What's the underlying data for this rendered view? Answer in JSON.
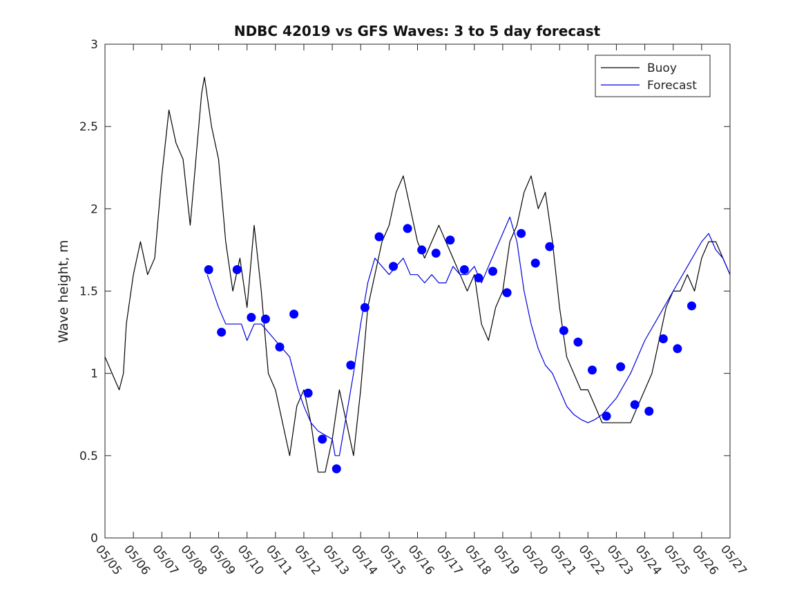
{
  "chart_data": {
    "type": "line",
    "title": "NDBC 42019 vs GFS Waves: 3 to 5 day forecast",
    "xlabel": "",
    "ylabel": "Wave height, m",
    "ylim": [
      0,
      3
    ],
    "xlim": [
      0,
      22
    ],
    "yticks": [
      0,
      0.5,
      1,
      1.5,
      2,
      2.5,
      3
    ],
    "ytick_labels": [
      "0",
      "0.5",
      "1",
      "1.5",
      "2",
      "2.5",
      "3"
    ],
    "xtick_labels": [
      "05/05",
      "05/06",
      "05/07",
      "05/08",
      "05/09",
      "05/10",
      "05/11",
      "05/12",
      "05/13",
      "05/14",
      "05/15",
      "05/16",
      "05/17",
      "05/18",
      "05/19",
      "05/20",
      "05/21",
      "05/22",
      "05/23",
      "05/24",
      "05/25",
      "05/26",
      "05/27"
    ],
    "grid": false,
    "legend_position": "top-right",
    "legend": [
      {
        "label": "Buoy",
        "color": "#000000"
      },
      {
        "label": "Forecast",
        "color": "#0000dd"
      }
    ],
    "colors": {
      "buoy": "#000000",
      "forecast": "#0000dd",
      "marker": "#0000ff"
    },
    "series": [
      {
        "name": "Buoy",
        "x": [
          0,
          0.25,
          0.5,
          0.65,
          0.75,
          1.0,
          1.25,
          1.5,
          1.75,
          2.0,
          2.25,
          2.5,
          2.75,
          3.0,
          3.25,
          3.4,
          3.5,
          3.75,
          4.0,
          4.25,
          4.5,
          4.75,
          5.0,
          5.25,
          5.5,
          5.75,
          6.0,
          6.25,
          6.5,
          6.75,
          7.0,
          7.25,
          7.5,
          7.75,
          8.0,
          8.25,
          8.5,
          8.75,
          9.0,
          9.25,
          9.5,
          9.75,
          10.0,
          10.25,
          10.5,
          10.75,
          11.0,
          11.25,
          11.5,
          11.75,
          12.0,
          12.25,
          12.5,
          12.75,
          13.0,
          13.25,
          13.5,
          13.75,
          14.0,
          14.25,
          14.5,
          14.75,
          15.0,
          15.25,
          15.5,
          15.75,
          16.0,
          16.25,
          16.5,
          16.75,
          17.0,
          17.25,
          17.5,
          17.75,
          18.0,
          18.25,
          18.5,
          18.75,
          19.0,
          19.25,
          19.5,
          19.75,
          20.0,
          20.25,
          20.5,
          20.75,
          21.0,
          21.25,
          21.5,
          21.75,
          22.0
        ],
        "values": [
          1.1,
          1.0,
          0.9,
          1.0,
          1.3,
          1.6,
          1.8,
          1.6,
          1.7,
          2.2,
          2.6,
          2.4,
          2.3,
          1.9,
          2.4,
          2.7,
          2.8,
          2.5,
          2.3,
          1.8,
          1.5,
          1.7,
          1.4,
          1.9,
          1.5,
          1.0,
          0.9,
          0.7,
          0.5,
          0.8,
          0.9,
          0.7,
          0.4,
          0.4,
          0.6,
          0.9,
          0.7,
          0.5,
          0.9,
          1.4,
          1.6,
          1.8,
          1.9,
          2.1,
          2.2,
          2.0,
          1.8,
          1.7,
          1.8,
          1.9,
          1.8,
          1.7,
          1.6,
          1.5,
          1.6,
          1.3,
          1.2,
          1.4,
          1.5,
          1.8,
          1.9,
          2.1,
          2.2,
          2.0,
          2.1,
          1.8,
          1.4,
          1.1,
          1.0,
          0.9,
          0.9,
          0.8,
          0.7,
          0.7,
          0.7,
          0.7,
          0.7,
          0.8,
          0.9,
          1.0,
          1.2,
          1.4,
          1.5,
          1.5,
          1.6,
          1.5,
          1.7,
          1.8,
          1.8,
          1.7,
          1.6
        ]
      },
      {
        "name": "Forecast",
        "x": [
          3.6,
          4.0,
          4.25,
          4.5,
          4.8,
          5.0,
          5.25,
          5.5,
          6.0,
          6.5,
          6.8,
          7.0,
          7.25,
          7.5,
          8.0,
          8.1,
          8.25,
          8.5,
          8.75,
          9.0,
          9.25,
          9.5,
          9.75,
          10.0,
          10.25,
          10.5,
          10.75,
          11.0,
          11.25,
          11.5,
          11.75,
          12.0,
          12.25,
          12.5,
          12.75,
          13.0,
          13.25,
          13.5,
          13.75,
          14.0,
          14.25,
          14.5,
          14.75,
          15.0,
          15.25,
          15.5,
          15.75,
          16.0,
          16.25,
          16.5,
          16.75,
          17.0,
          17.25,
          17.5,
          18.0,
          18.5,
          19.0,
          19.5,
          20.0,
          20.5,
          21.0,
          21.25,
          21.5,
          21.75,
          22.0
        ],
        "values": [
          1.6,
          1.4,
          1.3,
          1.3,
          1.3,
          1.2,
          1.3,
          1.3,
          1.2,
          1.1,
          0.9,
          0.8,
          0.7,
          0.65,
          0.6,
          0.5,
          0.5,
          0.75,
          1.0,
          1.3,
          1.55,
          1.7,
          1.65,
          1.6,
          1.65,
          1.7,
          1.6,
          1.6,
          1.55,
          1.6,
          1.55,
          1.55,
          1.65,
          1.6,
          1.6,
          1.65,
          1.55,
          1.65,
          1.75,
          1.85,
          1.95,
          1.8,
          1.5,
          1.3,
          1.15,
          1.05,
          1.0,
          0.9,
          0.8,
          0.75,
          0.72,
          0.7,
          0.72,
          0.75,
          0.85,
          1.0,
          1.2,
          1.35,
          1.5,
          1.65,
          1.8,
          1.85,
          1.75,
          1.7,
          1.6
        ]
      }
    ],
    "markers": {
      "name": "Forecast",
      "x": [
        3.65,
        4.1,
        4.65,
        5.15,
        5.65,
        6.15,
        6.65,
        7.15,
        7.65,
        8.15,
        8.65,
        9.15,
        9.65,
        10.15,
        10.65,
        11.15,
        11.65,
        12.15,
        12.65,
        13.15,
        13.65,
        14.15,
        14.65,
        15.15,
        15.65,
        16.15,
        16.65,
        17.15,
        17.65,
        18.15,
        18.65,
        19.15,
        19.65,
        20.15,
        20.65
      ],
      "values": [
        1.63,
        1.25,
        1.63,
        1.34,
        1.33,
        1.16,
        1.36,
        0.88,
        0.6,
        0.42,
        1.05,
        1.4,
        1.83,
        1.65,
        1.88,
        1.75,
        1.73,
        1.81,
        1.63,
        1.58,
        1.62,
        1.49,
        1.85,
        1.67,
        1.77,
        1.26,
        1.19,
        1.02,
        0.74,
        1.04,
        0.81,
        0.77,
        1.21,
        1.15,
        1.41
      ]
    }
  }
}
